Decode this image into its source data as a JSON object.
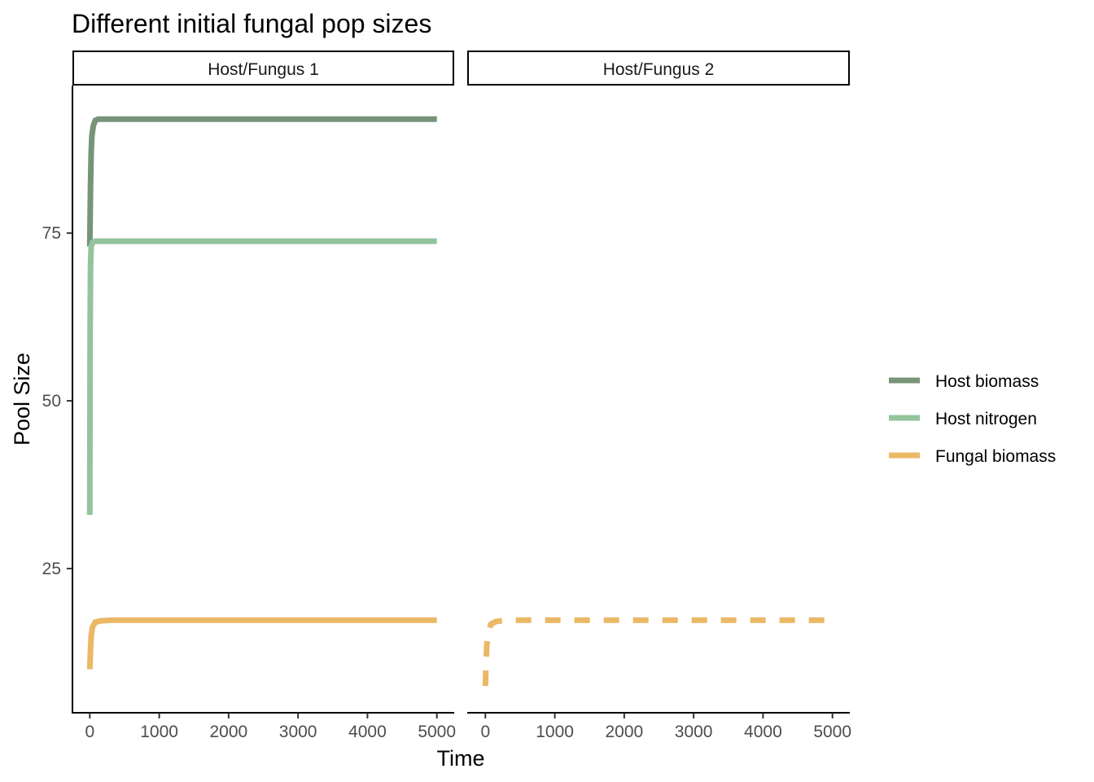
{
  "chart_data": {
    "type": "line",
    "title": "Different initial fungal pop sizes",
    "xlabel": "Time",
    "ylabel": "Pool Size",
    "xlim": [
      -250,
      5250
    ],
    "ylim": [
      3.5,
      97
    ],
    "x_ticks": [
      0,
      1000,
      2000,
      3000,
      4000,
      5000
    ],
    "x_tick_labels": [
      "0",
      "1000",
      "2000",
      "3000",
      "4000",
      "5000"
    ],
    "y_ticks": [
      25,
      50,
      75
    ],
    "y_tick_labels": [
      "25",
      "50",
      "75"
    ],
    "grid": false,
    "legend_position": "right",
    "legend": [
      {
        "key": "host_biomass",
        "label": "Host biomass",
        "color": "#779479",
        "dash": "solid"
      },
      {
        "key": "host_nitrogen",
        "label": "Host nitrogen",
        "color": "#93c49c",
        "dash": "solid"
      },
      {
        "key": "fungal_biomass",
        "label": "Fungal biomass",
        "color": "#ebb866",
        "dash": "dashed"
      }
    ],
    "panels": [
      {
        "strip": "Host/Fungus 1",
        "series": [
          {
            "key": "host_biomass",
            "color": "#779479",
            "dash": "solid",
            "x": [
              0,
              10,
              20,
              30,
              50,
              80,
              120,
              200,
              500,
              1000,
              2000,
              3000,
              4000,
              5000
            ],
            "y": [
              73,
              82,
              87,
              89.5,
              91,
              91.8,
              92,
              92,
              92,
              92,
              92,
              92,
              92,
              92
            ]
          },
          {
            "key": "host_nitrogen",
            "color": "#93c49c",
            "dash": "solid",
            "x": [
              0,
              5,
              10,
              20,
              40,
              80,
              200,
              1000,
              2000,
              3000,
              4000,
              5000
            ],
            "y": [
              33,
              60,
              70,
              73,
              73.6,
              73.8,
              73.8,
              73.8,
              73.8,
              73.8,
              73.8,
              73.8
            ]
          },
          {
            "key": "fungal_biomass",
            "color": "#ebb866",
            "dash": "solid",
            "x": [
              0,
              10,
              20,
              40,
              80,
              150,
              300,
              1000,
              2000,
              3000,
              4000,
              5000
            ],
            "y": [
              10,
              13,
              15,
              16.3,
              17,
              17.2,
              17.3,
              17.3,
              17.3,
              17.3,
              17.3,
              17.3
            ]
          }
        ]
      },
      {
        "strip": "Host/Fungus 2",
        "series": [
          {
            "key": "fungal_biomass",
            "color": "#ebb866",
            "dash": "dashed",
            "x": [
              0,
              10,
              20,
              40,
              80,
              150,
              300,
              1000,
              2000,
              3000,
              4000,
              5000
            ],
            "y": [
              7.5,
              11,
              13.5,
              15.5,
              16.7,
              17.1,
              17.3,
              17.3,
              17.3,
              17.3,
              17.3,
              17.3
            ]
          }
        ]
      }
    ]
  }
}
